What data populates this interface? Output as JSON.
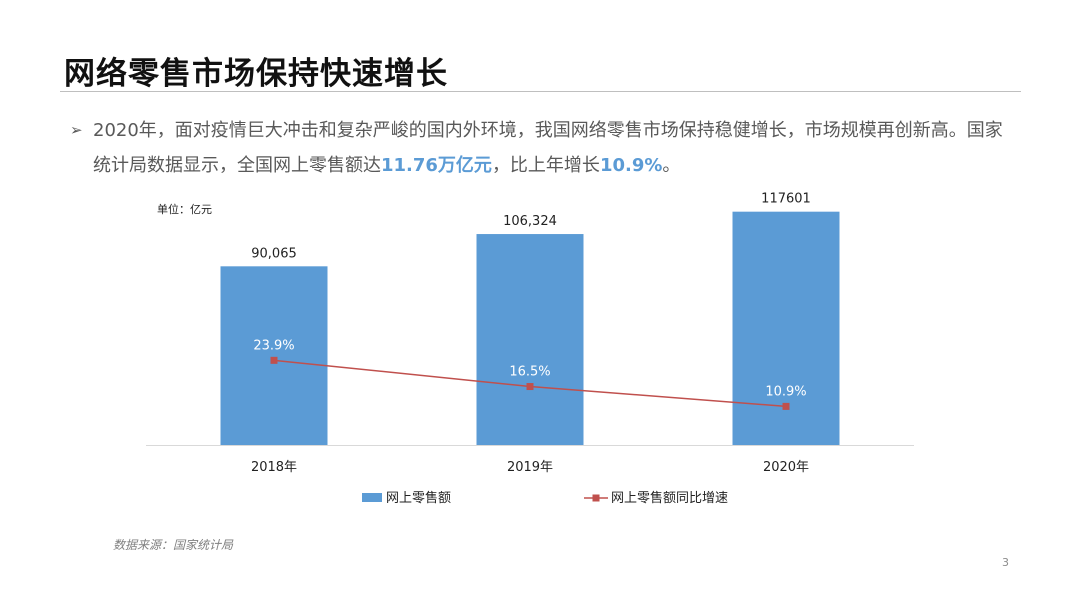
{
  "slide": {
    "title": "网络零售市场保持快速增长",
    "bullet_mark": "➢",
    "bullet": {
      "part1": "2020年，面对疫情巨大冲击和复杂严峻的国内外环境，我国网络零售市场保持稳健增长，市场规模再创新高。国家统计局数据显示，全国网上零售额达",
      "highlight1": "11.76万亿元",
      "part2": "，比上年增长",
      "highlight2": "10.9%",
      "part3": "。"
    },
    "source": "数据来源：国家统计局",
    "page_number": "3"
  },
  "colors": {
    "bar": "#5b9bd5",
    "line": "#c0504d",
    "highlight": "#5b9bd5",
    "axis": "#d9d9d9"
  },
  "chart_data": {
    "type": "bar",
    "unit_label": "单位：亿元",
    "categories": [
      "2018年",
      "2019年",
      "2020年"
    ],
    "series": [
      {
        "name": "网上零售额",
        "type": "bar",
        "values": [
          90065,
          106324,
          117601
        ],
        "labels": [
          "90,065",
          "106,324",
          "117601"
        ]
      },
      {
        "name": "网上零售额同比增速",
        "type": "line",
        "values": [
          23.9,
          16.5,
          10.9
        ],
        "labels": [
          "23.9%",
          "16.5%",
          "10.9%"
        ]
      }
    ],
    "ylim": [
      0,
      125000
    ],
    "y2lim": [
      0,
      70
    ],
    "grid": false,
    "legend": "bottom"
  }
}
